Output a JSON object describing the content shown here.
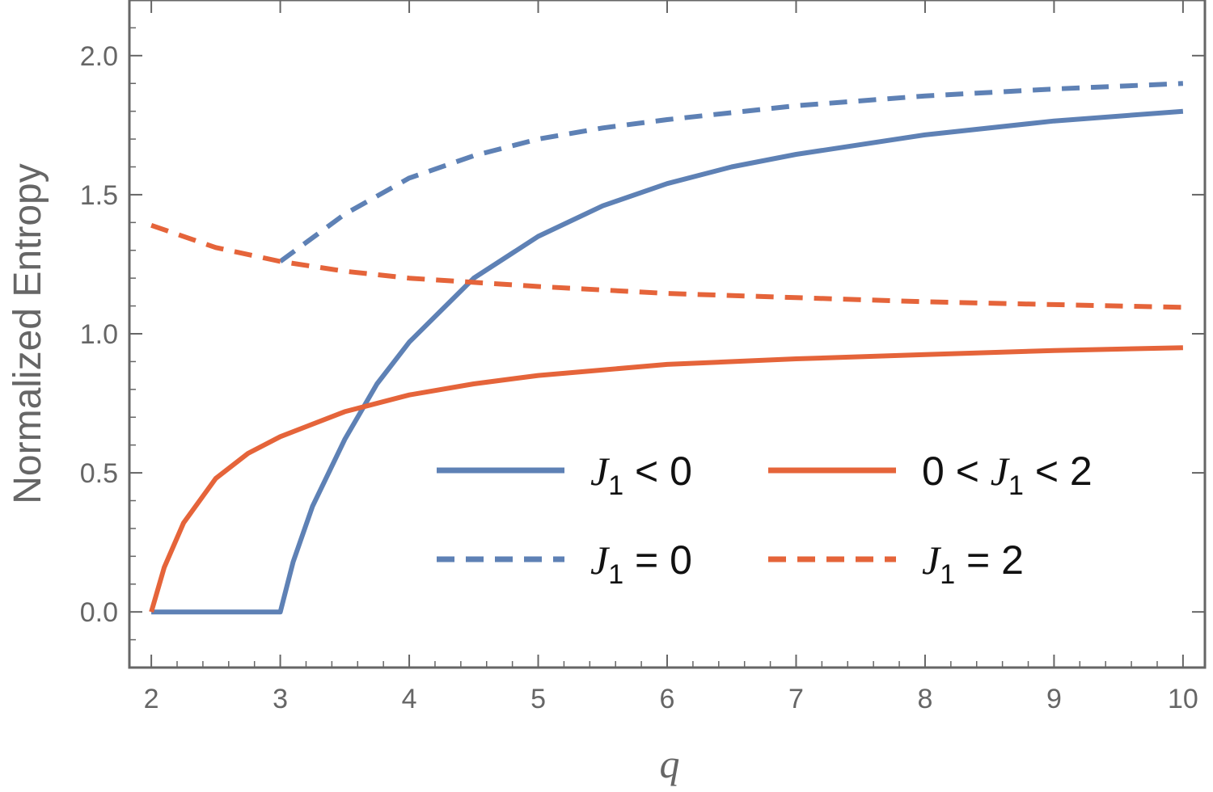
{
  "chart_data": {
    "type": "line",
    "xlabel": "q",
    "ylabel": "Normalized Entropy",
    "xlim": [
      1.83,
      10.17
    ],
    "ylim": [
      -0.2,
      2.2
    ],
    "x_ticks": [
      2,
      3,
      4,
      5,
      6,
      7,
      8,
      9,
      10
    ],
    "x_tick_labels": [
      "2",
      "3",
      "4",
      "5",
      "6",
      "7",
      "8",
      "9",
      "10"
    ],
    "y_ticks": [
      0.0,
      0.5,
      1.0,
      1.5,
      2.0
    ],
    "y_tick_labels": [
      "0.0",
      "0.5",
      "1.0",
      "1.5",
      "2.0"
    ],
    "grid": false,
    "legend_position": "lower-right",
    "colors": {
      "blue": "#5E81B5",
      "orange": "#E5643A",
      "axis": "#666666"
    },
    "series": [
      {
        "name": "J1 < 0",
        "label": {
          "pre": "",
          "var": "J",
          "sub": "1",
          "post": " < 0"
        },
        "color": "#5E81B5",
        "dash": "solid",
        "points": [
          [
            2,
            0
          ],
          [
            3,
            0
          ],
          [
            3.1,
            0.18
          ],
          [
            3.25,
            0.38
          ],
          [
            3.5,
            0.62
          ],
          [
            3.75,
            0.82
          ],
          [
            4,
            0.97
          ],
          [
            4.5,
            1.2
          ],
          [
            5,
            1.35
          ],
          [
            5.5,
            1.46
          ],
          [
            6,
            1.54
          ],
          [
            6.5,
            1.6
          ],
          [
            7,
            1.645
          ],
          [
            8,
            1.715
          ],
          [
            9,
            1.765
          ],
          [
            10,
            1.8
          ]
        ]
      },
      {
        "name": "0 < J1 < 2",
        "label": {
          "pre": "0 < ",
          "var": "J",
          "sub": "1",
          "post": " < 2"
        },
        "color": "#E5643A",
        "dash": "solid",
        "points": [
          [
            2,
            0
          ],
          [
            2.1,
            0.16
          ],
          [
            2.25,
            0.32
          ],
          [
            2.5,
            0.48
          ],
          [
            2.75,
            0.57
          ],
          [
            3,
            0.63
          ],
          [
            3.5,
            0.72
          ],
          [
            4,
            0.78
          ],
          [
            4.5,
            0.82
          ],
          [
            5,
            0.85
          ],
          [
            6,
            0.89
          ],
          [
            7,
            0.91
          ],
          [
            8,
            0.925
          ],
          [
            9,
            0.94
          ],
          [
            10,
            0.95
          ]
        ]
      },
      {
        "name": "J1 = 0",
        "label": {
          "pre": "",
          "var": "J",
          "sub": "1",
          "post": " = 0"
        },
        "color": "#5E81B5",
        "dash": "dashed",
        "points": [
          [
            3,
            1.26
          ],
          [
            3.5,
            1.43
          ],
          [
            4,
            1.56
          ],
          [
            4.5,
            1.64
          ],
          [
            5,
            1.7
          ],
          [
            5.5,
            1.74
          ],
          [
            6,
            1.77
          ],
          [
            7,
            1.82
          ],
          [
            8,
            1.855
          ],
          [
            9,
            1.88
          ],
          [
            10,
            1.9
          ]
        ]
      },
      {
        "name": "J1 = 2",
        "label": {
          "pre": "",
          "var": "J",
          "sub": "1",
          "post": " = 2"
        },
        "color": "#E5643A",
        "dash": "dashed",
        "points": [
          [
            2,
            1.39
          ],
          [
            2.5,
            1.31
          ],
          [
            3,
            1.26
          ],
          [
            3.5,
            1.225
          ],
          [
            4,
            1.2
          ],
          [
            5,
            1.17
          ],
          [
            6,
            1.145
          ],
          [
            7,
            1.13
          ],
          [
            8,
            1.115
          ],
          [
            9,
            1.105
          ],
          [
            10,
            1.095
          ]
        ]
      }
    ]
  }
}
